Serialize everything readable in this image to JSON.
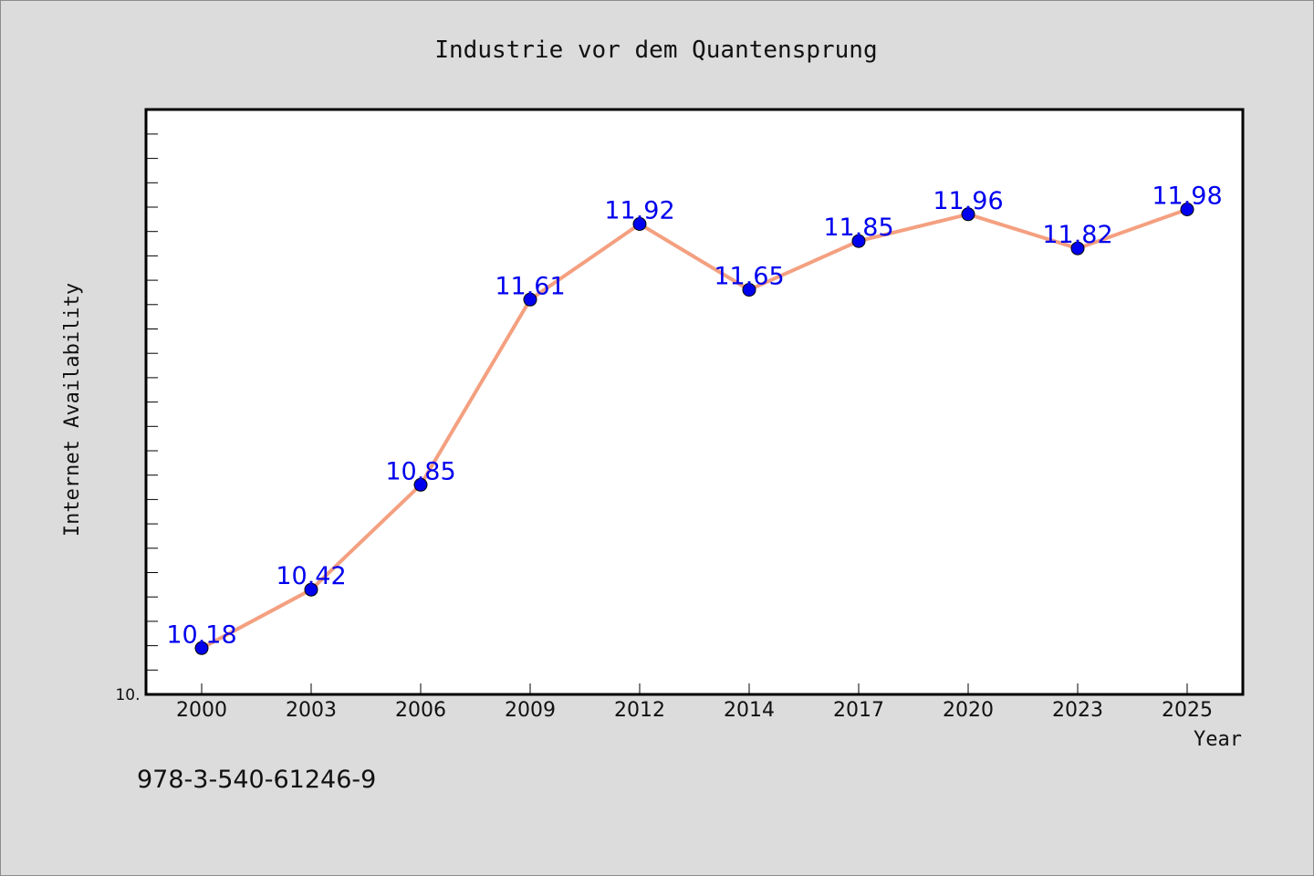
{
  "chart_data": {
    "type": "line",
    "title": "Industrie vor dem Quantensprung",
    "xlabel": "Year",
    "ylabel": "Internet Availability",
    "categories": [
      "2000",
      "2003",
      "2006",
      "2009",
      "2012",
      "2014",
      "2017",
      "2020",
      "2023",
      "2025"
    ],
    "series": [
      {
        "values": [
          10.18,
          10.42,
          10.85,
          11.61,
          11.92,
          11.65,
          11.85,
          11.96,
          11.82,
          11.98
        ]
      }
    ],
    "y_tick_label": "10.",
    "ylim": [
      9.99,
      12.39
    ],
    "grid": false,
    "legend": false,
    "colors": {
      "line": "#f4a080",
      "marker": "#0000ee",
      "label": "#0000ee",
      "plot_background": "#ffffff",
      "page_background": "#dcdcdc"
    }
  },
  "footer": {
    "isbn": "978-3-540-61246-9"
  }
}
